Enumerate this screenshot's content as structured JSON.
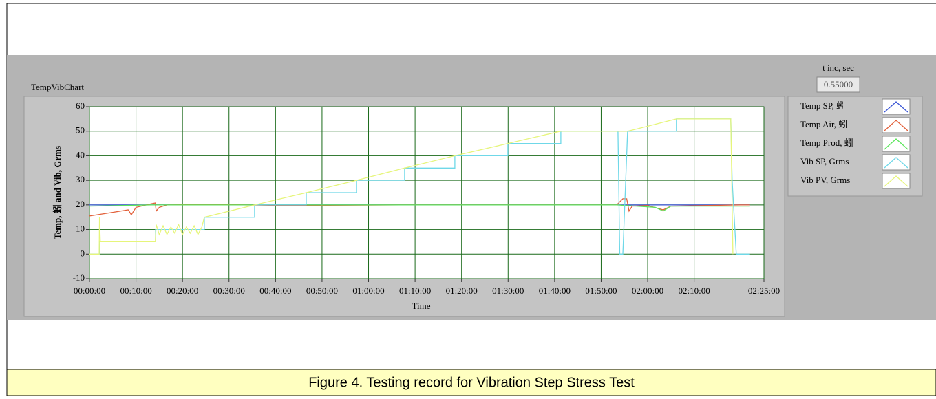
{
  "chart_data": {
    "type": "line",
    "title": "TempVibChart",
    "xlabel": "Time",
    "ylabel": "Temp, 蚓 and Vib, Grms",
    "xlim": [
      0,
      8700
    ],
    "ylim": [
      -10,
      60
    ],
    "xticks": [
      {
        "value": 0,
        "label": "00:00:00"
      },
      {
        "value": 600,
        "label": "00:10:00"
      },
      {
        "value": 1200,
        "label": "00:20:00"
      },
      {
        "value": 1800,
        "label": "00:30:00"
      },
      {
        "value": 2400,
        "label": "00:40:00"
      },
      {
        "value": 3000,
        "label": "00:50:00"
      },
      {
        "value": 3600,
        "label": "01:00:00"
      },
      {
        "value": 4200,
        "label": "01:10:00"
      },
      {
        "value": 4800,
        "label": "01:20:00"
      },
      {
        "value": 5400,
        "label": "01:30:00"
      },
      {
        "value": 6000,
        "label": "01:40:00"
      },
      {
        "value": 6600,
        "label": "01:50:00"
      },
      {
        "value": 7200,
        "label": "02:00:00"
      },
      {
        "value": 7800,
        "label": "02:10:00"
      },
      {
        "value": 8700,
        "label": "02:25:00"
      }
    ],
    "yticks": [
      -10,
      0,
      10,
      20,
      30,
      40,
      50,
      60
    ],
    "grid": true,
    "legend": "right",
    "series": [
      {
        "name": "Temp SP, 蚓",
        "color": "#3b56d6",
        "x": [
          0,
          8520
        ],
        "values": [
          20,
          20
        ]
      },
      {
        "name": "Temp Air, 蚓",
        "color": "#e2603a",
        "x": [
          0,
          300,
          500,
          540,
          600,
          800,
          850,
          860,
          900,
          1000,
          1500,
          2500,
          4000,
          6800,
          6880,
          6930,
          6960,
          7000,
          7200,
          7400,
          7500,
          8400,
          8520
        ],
        "values": [
          15.5,
          17,
          18,
          16,
          19,
          20.5,
          20.8,
          17.5,
          19,
          20,
          20.2,
          19.8,
          20,
          20,
          22.5,
          22.5,
          17.5,
          19.5,
          19.8,
          18,
          19.5,
          20,
          20
        ]
      },
      {
        "name": "Temp Prod, 蚓",
        "color": "#5ce65c",
        "x": [
          0,
          800,
          6800,
          7300,
          7400,
          7500,
          8520
        ],
        "values": [
          19.5,
          20,
          20,
          19,
          17.5,
          19.5,
          19.5
        ]
      },
      {
        "name": "Vib SP, Grms",
        "color": "#6fd8e8",
        "x": [
          0,
          133,
          133,
          852,
          852,
          1482,
          1482,
          2130,
          2130,
          2796,
          2796,
          3444,
          3444,
          4065,
          4065,
          4713,
          4713,
          5397,
          5397,
          6080,
          6080,
          6817,
          6840,
          6880,
          6941,
          7571,
          7571,
          8272,
          8290,
          8343,
          8520
        ],
        "values": [
          0,
          0,
          5,
          5,
          10,
          10,
          15,
          15,
          20,
          20,
          25,
          25,
          30,
          30,
          35,
          35,
          40,
          40,
          45,
          45,
          50,
          50,
          0,
          0,
          50,
          50,
          55,
          55,
          30,
          0,
          0
        ]
      },
      {
        "name": "Vib PV, Grms",
        "color": "#e6f57a",
        "x": [
          0,
          125,
          130,
          140,
          850,
          860,
          900,
          950,
          1000,
          1050,
          1100,
          1150,
          1200,
          1250,
          1300,
          1350,
          1400,
          1450,
          1482,
          2130,
          2796,
          3444,
          4065,
          4713,
          5397,
          6080,
          6817,
          6941,
          7571,
          8272,
          8300
        ],
        "values": [
          0,
          0,
          15,
          5,
          5,
          12,
          8,
          11.5,
          8,
          11,
          8.5,
          12,
          8,
          11,
          8.5,
          11.5,
          8,
          11,
          15,
          20,
          25,
          30,
          35,
          40,
          45,
          50,
          50,
          50,
          55,
          55,
          0
        ]
      }
    ]
  },
  "control": {
    "label": "t inc, sec",
    "value": "0.55000"
  },
  "caption": "Figure 4. Testing record for Vibration Step Stress Test"
}
